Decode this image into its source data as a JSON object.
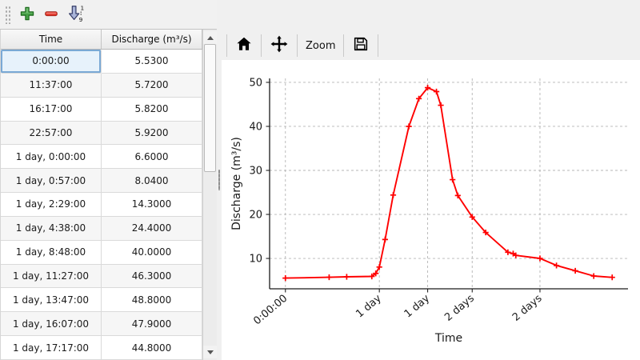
{
  "left_toolbar": {
    "add_icon": "add-row",
    "remove_icon": "remove-row",
    "sort_icon": "sort-ascending",
    "sort_top_digit": "1",
    "sort_bottom_digit": "9"
  },
  "table": {
    "columns": [
      "Time",
      "Discharge (m³/s)"
    ],
    "rows": [
      {
        "time": "0:00:00",
        "discharge": "5.5300"
      },
      {
        "time": "11:37:00",
        "discharge": "5.7200"
      },
      {
        "time": "16:17:00",
        "discharge": "5.8200"
      },
      {
        "time": "22:57:00",
        "discharge": "5.9200"
      },
      {
        "time": "1 day, 0:00:00",
        "discharge": "6.6000"
      },
      {
        "time": "1 day, 0:57:00",
        "discharge": "8.0400"
      },
      {
        "time": "1 day, 2:29:00",
        "discharge": "14.3000"
      },
      {
        "time": "1 day, 4:38:00",
        "discharge": "24.4000"
      },
      {
        "time": "1 day, 8:48:00",
        "discharge": "40.0000"
      },
      {
        "time": "1 day, 11:27:00",
        "discharge": "46.3000"
      },
      {
        "time": "1 day, 13:47:00",
        "discharge": "48.8000"
      },
      {
        "time": "1 day, 16:07:00",
        "discharge": "47.9000"
      },
      {
        "time": "1 day, 17:17:00",
        "discharge": "44.8000"
      }
    ],
    "selected_cell": {
      "row": 0,
      "column": 0
    }
  },
  "chart_toolbar": {
    "home_icon": "reset-view",
    "pan_icon": "pan",
    "zoom_label": "Zoom",
    "save_icon": "save-figure"
  },
  "chart_data": {
    "type": "line",
    "xlabel": "Time",
    "ylabel": "Discharge (m³/s)",
    "line_color": "#ff0000",
    "marker": "+",
    "grid": true,
    "x_hours": [
      0,
      11.617,
      16.283,
      22.95,
      24.0,
      24.95,
      26.483,
      28.633,
      32.8,
      35.45,
      37.783,
      40.117,
      41.283,
      44.4,
      45.8,
      49.617,
      53.2,
      59.1,
      60.5,
      61.2,
      67.617,
      72.0,
      77.0,
      81.9,
      86.8
    ],
    "values": [
      5.53,
      5.72,
      5.82,
      5.92,
      6.6,
      8.04,
      14.3,
      24.4,
      40.0,
      46.3,
      48.8,
      47.9,
      44.8,
      27.9,
      24.3,
      19.4,
      15.9,
      11.4,
      11.1,
      10.7,
      10.0,
      8.4,
      7.2,
      6.0,
      5.7
    ],
    "xticks": {
      "hours": [
        0,
        24.95,
        37.783,
        49.617,
        67.617
      ],
      "labels": [
        "0:00:00",
        "1 day",
        "1 day",
        "2 days",
        "2 days"
      ]
    },
    "yticks": [
      10,
      20,
      30,
      40,
      50
    ],
    "xlim_hours": [
      -4.2,
      91.0
    ],
    "ylim": [
      3.1,
      50.9
    ],
    "tick_label_rotation_deg": 40
  }
}
